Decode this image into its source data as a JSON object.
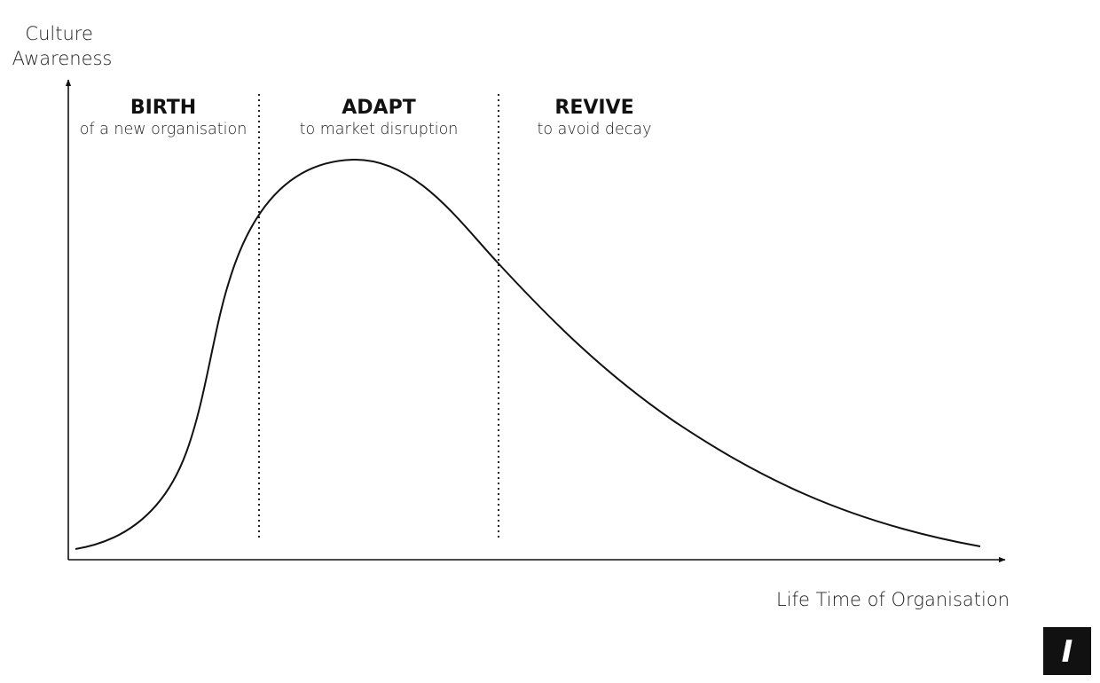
{
  "axes": {
    "y_title_line1": "Culture",
    "y_title_line2": "Awareness",
    "x_title": "Life Time of Organisation"
  },
  "phases": [
    {
      "title": "BIRTH",
      "subtitle": "of a new organisation"
    },
    {
      "title": "ADAPT",
      "subtitle": "to market disruption"
    },
    {
      "title": "REVIVE",
      "subtitle": "to avoid decay"
    }
  ],
  "logo": {
    "glyph": "I"
  }
}
